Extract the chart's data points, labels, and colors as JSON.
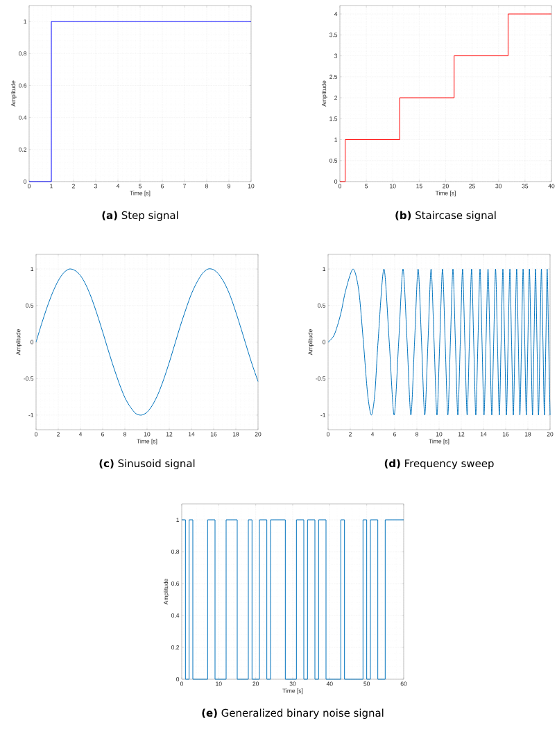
{
  "chart_data": [
    {
      "type": "step",
      "title": "**(a)** Step signal",
      "xlabel": "Time [s]",
      "ylabel": "Amplitude",
      "color": "#0000ff",
      "grid": true,
      "x": [
        0,
        1,
        10
      ],
      "values": [
        0,
        1,
        1
      ],
      "xlim": [
        0,
        10
      ],
      "ylim": [
        0,
        1.1
      ],
      "xticks": [
        0,
        1,
        2,
        3,
        4,
        5,
        6,
        7,
        8,
        9,
        10
      ],
      "yticks": [
        0,
        0.2,
        0.4,
        0.6,
        0.8,
        1
      ]
    },
    {
      "type": "step",
      "title": "**(b)** Staircase signal",
      "xlabel": "Time [s]",
      "ylabel": "Amplitude",
      "color": "#ff0000",
      "grid": true,
      "x": [
        0,
        1,
        11.3,
        21.6,
        31.8,
        40
      ],
      "values": [
        0,
        1,
        2,
        3,
        4,
        4
      ],
      "xlim": [
        0,
        40
      ],
      "ylim": [
        0,
        4.2
      ],
      "xticks": [
        0,
        5,
        10,
        15,
        20,
        25,
        30,
        35,
        40
      ],
      "yticks": [
        0,
        0.5,
        1,
        1.5,
        2,
        2.5,
        3,
        3.5,
        4
      ]
    },
    {
      "type": "line",
      "title": "**(c)** Sinusoid signal",
      "xlabel": "Time [s]",
      "ylabel": "Amplitude",
      "color": "#0072bd",
      "grid": true,
      "x": [
        0,
        0.5,
        1,
        1.5,
        2,
        2.5,
        3,
        3.5,
        4,
        4.5,
        5,
        5.5,
        6,
        6.5,
        7,
        7.5,
        8,
        8.5,
        9,
        9.5,
        10,
        10.5,
        11,
        11.5,
        12,
        12.5,
        13,
        13.5,
        14,
        14.5,
        15,
        15.5,
        16,
        16.5,
        17,
        17.5,
        18,
        18.5,
        19,
        19.5,
        20
      ],
      "values": [
        0,
        0.25,
        0.48,
        0.68,
        0.84,
        0.95,
        1.0,
        0.98,
        0.91,
        0.78,
        0.6,
        0.38,
        0.14,
        -0.11,
        -0.35,
        -0.57,
        -0.76,
        -0.89,
        -0.98,
        -1.0,
        -0.96,
        -0.86,
        -0.71,
        -0.51,
        -0.28,
        -0.03,
        0.22,
        0.45,
        0.66,
        0.82,
        0.94,
        1.0,
        0.99,
        0.92,
        0.8,
        0.63,
        0.41,
        0.17,
        -0.08,
        -0.32,
        -0.54
      ],
      "xlim": [
        0,
        20
      ],
      "ylim": [
        -1.2,
        1.2
      ],
      "xticks": [
        0,
        2,
        4,
        6,
        8,
        10,
        12,
        14,
        16,
        18,
        20
      ],
      "yticks": [
        -1,
        -0.5,
        0,
        0.5,
        1
      ]
    },
    {
      "type": "line",
      "title": "**(d)** Frequency sweep",
      "xlabel": "Time [s]",
      "ylabel": "Amplitude",
      "color": "#0072bd",
      "grid": true,
      "x": [
        0,
        0.56,
        1.13,
        1.59,
        2.25,
        2.76,
        3.18,
        3.56,
        3.9,
        4.21,
        4.5,
        5.03,
        5.51,
        5.95,
        6.36,
        6.75,
        7.12,
        7.46,
        7.79,
        8.11,
        8.42,
        8.71,
        9.0,
        9.28,
        9.55,
        9.81,
        10.06,
        10.31,
        10.55,
        10.79,
        11.02,
        11.25,
        11.47,
        11.69,
        11.91,
        12.12,
        12.32,
        12.53,
        12.73,
        12.93,
        13.12,
        13.31,
        13.5,
        13.69,
        13.87,
        14.05,
        14.23,
        14.41,
        14.58,
        14.75,
        14.92,
        15.09,
        15.26,
        15.43,
        15.59,
        15.75,
        15.91,
        16.07,
        16.22,
        16.38,
        16.53,
        16.69,
        16.84,
        16.99,
        17.14,
        17.28,
        17.43,
        17.57,
        17.72,
        17.86,
        18.0,
        18.14,
        18.28,
        18.42,
        18.55,
        18.69,
        18.82,
        18.96,
        19.09,
        19.22,
        19.36,
        19.49,
        19.62,
        19.74,
        19.87,
        20.0
      ],
      "values": [
        0,
        0.1,
        0.38,
        0.71,
        1,
        0.71,
        0,
        -0.71,
        -1,
        -0.71,
        0,
        1,
        0,
        -1,
        0,
        1,
        0,
        -1,
        0,
        1,
        0,
        -1,
        0,
        1,
        0,
        -1,
        0,
        1,
        0,
        -1,
        0,
        1,
        0,
        -1,
        0,
        1,
        0,
        -1,
        0,
        1,
        0,
        -1,
        0,
        1,
        0,
        -1,
        0,
        1,
        0,
        -1,
        0,
        1,
        0,
        -1,
        0,
        1,
        0,
        -1,
        0,
        1,
        0,
        -1,
        0,
        1,
        0,
        -1,
        0,
        1,
        0,
        -1,
        0,
        1,
        0,
        -1,
        0,
        1,
        0,
        -1,
        0,
        1,
        0,
        -1,
        0,
        1,
        0,
        -1
      ],
      "xlim": [
        0,
        20
      ],
      "ylim": [
        -1.2,
        1.2
      ],
      "xticks": [
        0,
        2,
        4,
        6,
        8,
        10,
        12,
        14,
        16,
        18,
        20
      ],
      "yticks": [
        -1,
        -0.5,
        0,
        0.5,
        1
      ]
    },
    {
      "type": "step",
      "title": "**(e)** Generalized binary noise signal",
      "xlabel": "Time [s]",
      "ylabel": "Amplitude",
      "color": "#0072bd",
      "grid": true,
      "x": [
        0,
        1,
        2,
        3,
        7,
        9,
        12,
        15,
        18,
        19,
        21,
        23,
        24,
        28,
        31,
        33,
        34,
        36,
        37,
        39,
        43,
        44,
        49,
        50,
        51,
        53,
        55,
        60
      ],
      "values": [
        1,
        0,
        1,
        0,
        1,
        0,
        1,
        0,
        1,
        0,
        1,
        0,
        1,
        0,
        1,
        0,
        1,
        0,
        1,
        0,
        1,
        0,
        1,
        0,
        1,
        0,
        1,
        1
      ],
      "xlim": [
        0,
        60
      ],
      "ylim": [
        0,
        1.1
      ],
      "xticks": [
        0,
        10,
        20,
        30,
        40,
        50,
        60
      ],
      "yticks": [
        0,
        0.2,
        0.4,
        0.6,
        0.8,
        1
      ]
    }
  ]
}
